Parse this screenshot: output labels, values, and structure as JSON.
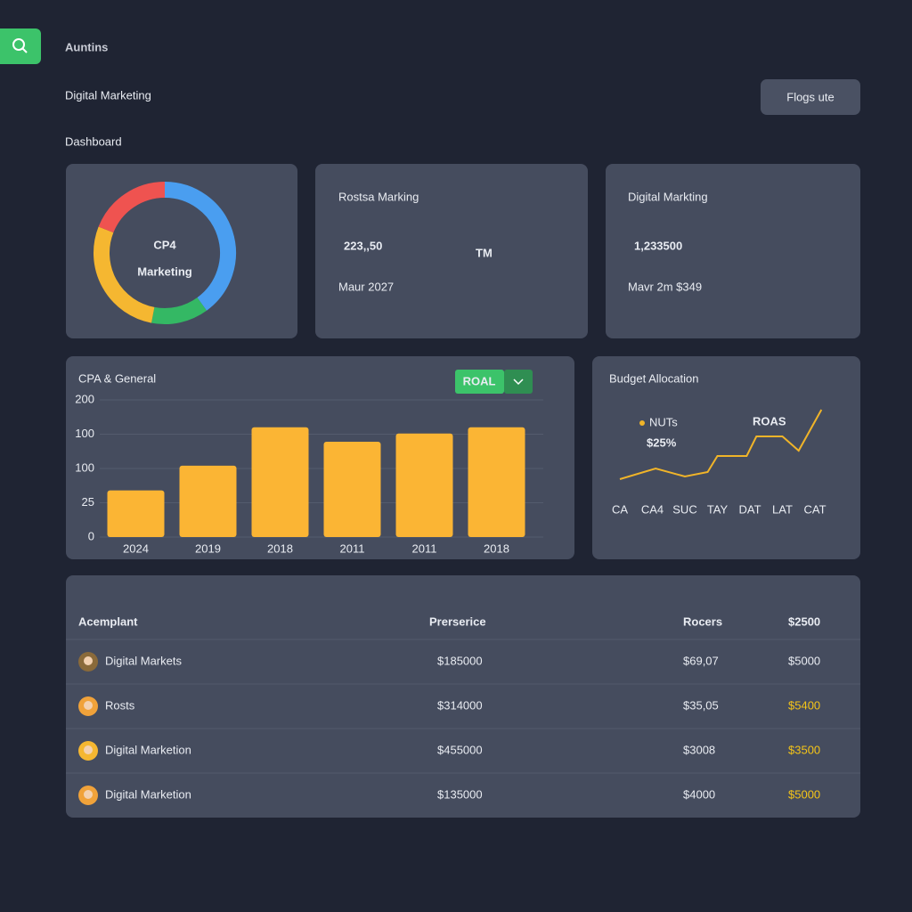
{
  "header": {
    "app_title": "Auntins",
    "subtitle": "Digital Marketing",
    "section": "Dashboard",
    "button": "Flogs ute"
  },
  "cards": [
    {
      "title": "Rostsa Marking",
      "value": "223,,50",
      "unit": "TM",
      "caption": "Maur 2027"
    },
    {
      "title": "Digital Markting",
      "value": "1,233500",
      "caption": "Mavr 2m $349"
    }
  ],
  "chart_data": [
    {
      "type": "pie",
      "center_title": "CP4",
      "center_subtitle": "Marketing",
      "values": [
        40,
        13,
        28,
        19
      ],
      "colors": [
        "#4a9ef0",
        "#34b864",
        "#f5b731",
        "#ef5350"
      ]
    },
    {
      "type": "bar",
      "title": "CPA & General",
      "toggle": "ROAL",
      "categories": [
        "2024",
        "2019",
        "2018",
        "2011",
        "2011",
        "2018"
      ],
      "values": [
        68,
        104,
        160,
        139,
        151,
        160
      ],
      "color": "#fbb534",
      "ylim": [
        0,
        200
      ],
      "ytick_labels": [
        "200",
        "100",
        "100",
        "25",
        "0"
      ],
      "grid": true
    },
    {
      "type": "line",
      "title": "Budget Allocation",
      "categories": [
        "CA",
        "CA4",
        "SUC",
        "TAY",
        "DAT",
        "LAT",
        "CAT"
      ],
      "x": [
        0,
        1.1,
        2,
        2.7,
        3,
        3.9,
        4.2,
        5,
        5.5,
        6.2
      ],
      "series": [
        {
          "name": "NUTs",
          "color": "#f0b429",
          "values": [
            17,
            29,
            20,
            25,
            43,
            43,
            65,
            65,
            49,
            95
          ]
        }
      ],
      "annotations": [
        "$25%",
        "ROAS"
      ],
      "xlim": [
        0,
        6
      ],
      "ylim": [
        0,
        100
      ]
    }
  ],
  "table": {
    "columns": [
      "Acemplant",
      "Prerserice",
      "Rocers",
      "$2500"
    ],
    "rows": [
      {
        "cells": [
          "Digital Markets",
          "$185000",
          "$69,07",
          "$5000"
        ],
        "accent": false
      },
      {
        "cells": [
          "Rosts",
          "$314000",
          "$35,05",
          "$5400"
        ],
        "accent": true
      },
      {
        "cells": [
          "Digital Marketion",
          "$455000",
          "$3008",
          "$3500"
        ],
        "accent": true
      },
      {
        "cells": [
          "Digital Marketion",
          "$135000",
          "$4000",
          "$5000"
        ],
        "accent": true
      }
    ]
  }
}
